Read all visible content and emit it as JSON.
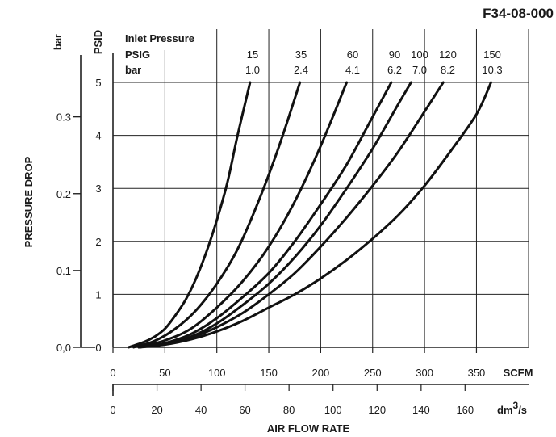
{
  "figure_id": "F34-08-000",
  "chart_data": {
    "type": "line",
    "title": "",
    "xlabel": "AIR FLOW RATE",
    "ylabel": "PRESSURE DROP",
    "x_unit": "SCFM",
    "x2_unit": "dm",
    "x2_unit_sup": "3",
    "x2_unit_tail": "/s",
    "y_unit": "PSID",
    "y2_unit": "bar",
    "xlim": [
      0,
      400
    ],
    "ylim": [
      0,
      5.4
    ],
    "x_ticks": [
      0,
      50,
      100,
      150,
      200,
      250,
      300,
      350
    ],
    "x2_ticks": [
      {
        "label": "0",
        "scfm": 0
      },
      {
        "label": "20",
        "scfm": 42.4
      },
      {
        "label": "40",
        "scfm": 84.8
      },
      {
        "label": "60",
        "scfm": 127.1
      },
      {
        "label": "80",
        "scfm": 169.5
      },
      {
        "label": "100",
        "scfm": 211.9
      },
      {
        "label": "120",
        "scfm": 254.3
      },
      {
        "label": "140",
        "scfm": 296.7
      },
      {
        "label": "160",
        "scfm": 339.0
      }
    ],
    "y_ticks": [
      0,
      1,
      2,
      3,
      4,
      5
    ],
    "y2_ticks": [
      {
        "label": "0,0",
        "psid": 0
      },
      {
        "label": "0.1",
        "psid": 1.45
      },
      {
        "label": "0.2",
        "psid": 2.9
      },
      {
        "label": "0.3",
        "psid": 4.35
      }
    ],
    "legend": {
      "heading": "Inlet Pressure",
      "row1_label": "PSIG",
      "row2_label": "bar"
    },
    "grid": {
      "x": true,
      "y": true
    },
    "series": [
      {
        "psig": "15",
        "bar": "1.0",
        "x": [
          15,
          30,
          40,
          50,
          60,
          70,
          80,
          90,
          100,
          110,
          120,
          132
        ],
        "y": [
          0,
          0.1,
          0.2,
          0.35,
          0.6,
          0.9,
          1.3,
          1.8,
          2.4,
          3.1,
          4.0,
          5.0
        ]
      },
      {
        "psig": "35",
        "bar": "2.4",
        "x": [
          20,
          40,
          60,
          80,
          100,
          120,
          140,
          160,
          180
        ],
        "y": [
          0,
          0.12,
          0.35,
          0.7,
          1.2,
          1.85,
          2.75,
          3.8,
          5.0
        ]
      },
      {
        "psig": "60",
        "bar": "4.1",
        "x": [
          25,
          50,
          75,
          100,
          125,
          150,
          175,
          200,
          225
        ],
        "y": [
          0,
          0.13,
          0.35,
          0.75,
          1.25,
          1.9,
          2.75,
          3.8,
          5.0
        ]
      },
      {
        "psig": "90",
        "bar": "6.2",
        "x": [
          25,
          50,
          75,
          100,
          125,
          150,
          175,
          200,
          225,
          250,
          268
        ],
        "y": [
          0,
          0.08,
          0.25,
          0.55,
          0.95,
          1.4,
          2.0,
          2.7,
          3.45,
          4.35,
          5.0
        ]
      },
      {
        "psig": "100",
        "bar": "7.0",
        "x": [
          25,
          50,
          75,
          100,
          125,
          150,
          175,
          200,
          225,
          250,
          275,
          287
        ],
        "y": [
          0,
          0.07,
          0.2,
          0.45,
          0.8,
          1.2,
          1.7,
          2.3,
          3.0,
          3.75,
          4.6,
          5.0
        ]
      },
      {
        "psig": "120",
        "bar": "8.2",
        "x": [
          25,
          50,
          75,
          100,
          125,
          150,
          175,
          200,
          225,
          250,
          275,
          300,
          318
        ],
        "y": [
          0,
          0.06,
          0.18,
          0.38,
          0.65,
          1.0,
          1.4,
          1.9,
          2.45,
          3.05,
          3.7,
          4.45,
          5.0
        ]
      },
      {
        "psig": "150",
        "bar": "10.3",
        "x": [
          25,
          50,
          75,
          100,
          125,
          150,
          175,
          200,
          225,
          250,
          275,
          300,
          325,
          350,
          364
        ],
        "y": [
          0,
          0.05,
          0.15,
          0.3,
          0.5,
          0.75,
          1.0,
          1.3,
          1.65,
          2.05,
          2.5,
          3.05,
          3.7,
          4.4,
          5.0
        ]
      }
    ]
  }
}
